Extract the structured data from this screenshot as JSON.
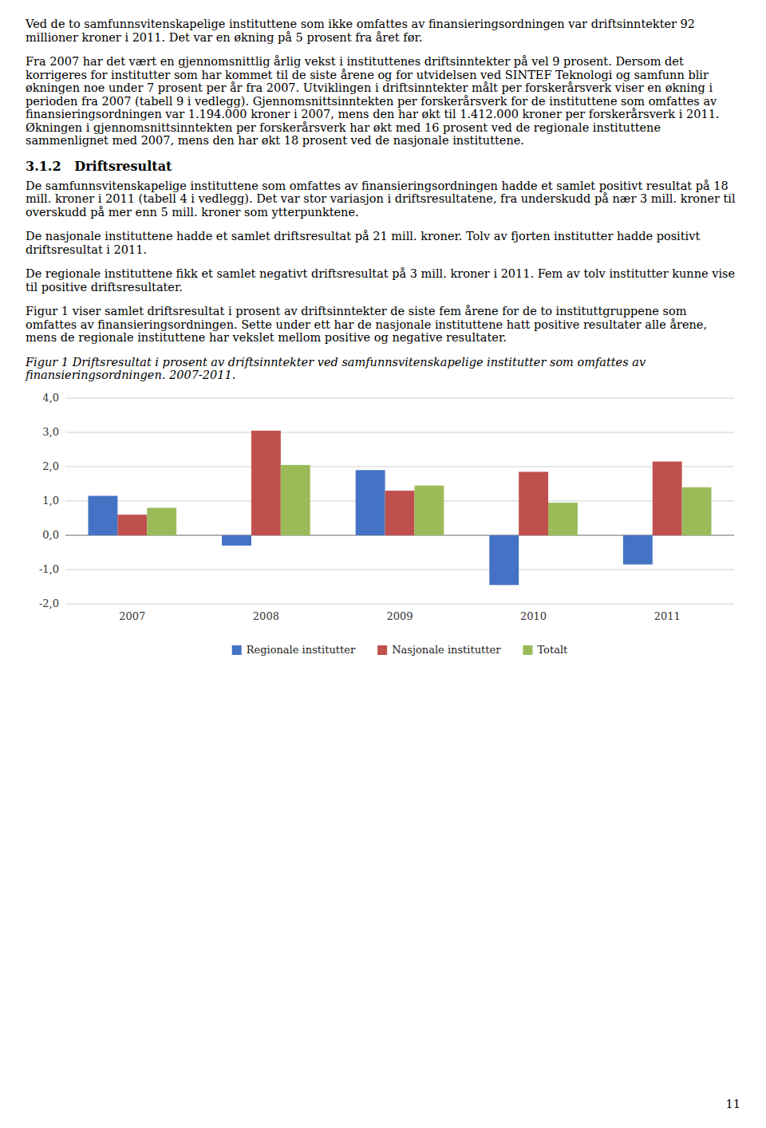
{
  "paragraphs_before_heading": [
    "Ved de to samfunnsvitenskapelige instituttene som ikke omfattes av finansieringsordningen var driftsinntekter 92 millioner kroner i 2011. Det var en økning på 5 prosent fra året før.",
    "Fra 2007 har det vært en gjennomsnittlig årlig vekst i instituttenes driftsinntekter på vel 9 prosent. Dersom det korrigeres for institutter som har kommet til de siste årene og for utvidelsen ved SINTEF Teknologi og samfunn blir økningen noe under 7 prosent per år fra 2007. Utviklingen i driftsinntekter målt per forskerårsverk viser en økning i perioden fra 2007 (tabell 9 i vedlegg). Gjennomsnittsinntekten per forskerårsverk for de instituttene som omfattes av finansieringsordningen var 1.194.000 kroner i 2007, mens den har økt til 1.412.000 kroner per forskerårsverk i 2011. Økningen i gjennomsnittsinntekten per forskerårsverk har økt med 16 prosent ved de regionale instituttene sammenlignet med 2007, mens den har økt 18 prosent ved de nasjonale instituttene."
  ],
  "heading": "3.1.2   Driftsresultat",
  "paragraphs": [
    "De samfunnsvitenskapelige instituttene som omfattes av finansieringsordningen hadde et samlet positivt resultat på 18 mill. kroner i 2011 (tabell 4 i vedlegg). Det var stor variasjon i driftsresultatene, fra underskudd på nær 3 mill. kroner til overskudd på mer enn 5 mill. kroner som ytterpunktene.",
    "De nasjonale instituttene hadde et samlet driftsresultat på 21 mill. kroner. Tolv av fjorten institutter hadde positivt driftsresultat i 2011.",
    "De regionale instituttene fikk et samlet negativt driftsresultat på 3 mill. kroner i 2011. Fem av tolv institutter kunne vise til positive driftsresultater.",
    "Figur 1 viser samlet driftsresultat i prosent av driftsinntekter de siste fem årene for de to instituttgruppene som omfattes av finansieringsordningen. Sette under ett har de nasjonale instituttene hatt positive resultater alle årene, mens de regionale instituttene har vekslet mellom positive og negative resultater."
  ],
  "page_number": "11",
  "chart_data": {
    "type": "bar",
    "title": "Figur 1 Driftsresultat i prosent av driftsinntekter ved samfunnsvitenskapelige institutter som omfattes av finansieringsordningen. 2007-2011.",
    "categories": [
      "2007",
      "2008",
      "2009",
      "2010",
      "2011"
    ],
    "series": [
      {
        "name": "Regionale institutter",
        "color": "#4472C4",
        "values": [
          1.15,
          -0.3,
          1.9,
          -1.45,
          -0.85
        ]
      },
      {
        "name": "Nasjonale institutter",
        "color": "#C0504D",
        "values": [
          0.6,
          3.05,
          1.3,
          1.85,
          2.15
        ]
      },
      {
        "name": "Totalt",
        "color": "#9BBB59",
        "values": [
          0.8,
          2.05,
          1.45,
          0.95,
          1.4
        ]
      }
    ],
    "ylim": [
      -2.0,
      4.0
    ],
    "yticks": [
      {
        "value": -2.0,
        "label": "-2,0"
      },
      {
        "value": -1.0,
        "label": "-1,0"
      },
      {
        "value": 0.0,
        "label": "0,0"
      },
      {
        "value": 1.0,
        "label": "1,0"
      },
      {
        "value": 2.0,
        "label": "2,0"
      },
      {
        "value": 3.0,
        "label": "3,0"
      },
      {
        "value": 4.0,
        "label": "4,0"
      }
    ],
    "grid": true,
    "legend": "bottom"
  }
}
